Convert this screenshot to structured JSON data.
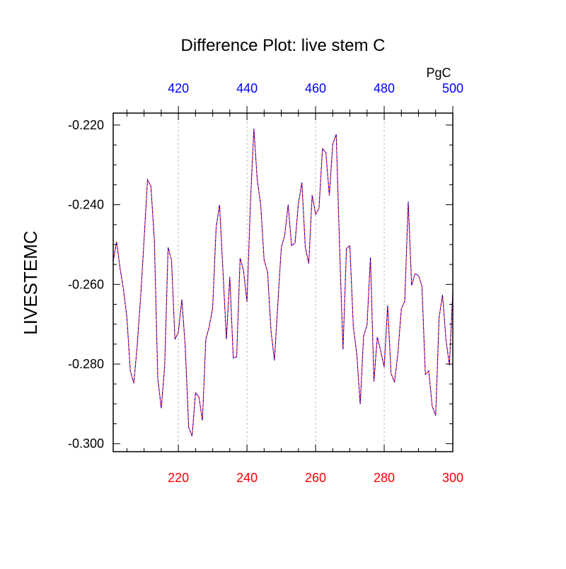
{
  "chart_data": {
    "type": "line",
    "title": "Difference Plot: live stem C",
    "ylabel": "LIVESTEMC",
    "units_label": "PgC",
    "xlim": [
      201,
      300
    ],
    "ylim": [
      -0.302,
      -0.217
    ],
    "bottom_axis": {
      "color": "#ff0000",
      "ticks": [
        220,
        240,
        260,
        280,
        300
      ]
    },
    "top_axis": {
      "color": "#0000ff",
      "offset": 200,
      "ticks": [
        420,
        440,
        460,
        480,
        500
      ]
    },
    "y_ticks": [
      -0.22,
      -0.24,
      -0.26,
      -0.28,
      -0.3
    ],
    "y_tick_labels": [
      "-0.220",
      "-0.240",
      "-0.260",
      "-0.280",
      "-0.300"
    ],
    "grid": "vertical dashed at major x ticks",
    "x": [
      201,
      202,
      203,
      204,
      205,
      206,
      207,
      208,
      209,
      210,
      211,
      212,
      213,
      214,
      215,
      216,
      217,
      218,
      219,
      220,
      221,
      222,
      223,
      224,
      225,
      226,
      227,
      228,
      229,
      230,
      231,
      232,
      233,
      234,
      235,
      236,
      237,
      238,
      239,
      240,
      241,
      242,
      243,
      244,
      245,
      246,
      247,
      248,
      249,
      250,
      251,
      252,
      253,
      254,
      255,
      256,
      257,
      258,
      259,
      260,
      261,
      262,
      263,
      264,
      265,
      266,
      267,
      268,
      269,
      270,
      271,
      272,
      273,
      274,
      275,
      276,
      277,
      278,
      279,
      280,
      281,
      282,
      283,
      284,
      285,
      286,
      287,
      288,
      289,
      290,
      291,
      292,
      293,
      294,
      295,
      296,
      297,
      298,
      299,
      300
    ],
    "series": [
      {
        "name": "series-red",
        "color": "#ff0000",
        "style": "solid",
        "values": [
          -0.2542,
          -0.2493,
          -0.256,
          -0.2613,
          -0.2684,
          -0.2817,
          -0.2848,
          -0.2755,
          -0.2631,
          -0.2489,
          -0.2337,
          -0.2354,
          -0.2489,
          -0.2835,
          -0.2911,
          -0.2808,
          -0.2507,
          -0.2539,
          -0.2738,
          -0.272,
          -0.2638,
          -0.2755,
          -0.2959,
          -0.2981,
          -0.2872,
          -0.2883,
          -0.2942,
          -0.2738,
          -0.2706,
          -0.2658,
          -0.2457,
          -0.24,
          -0.2569,
          -0.2738,
          -0.2581,
          -0.2785,
          -0.2782,
          -0.2534,
          -0.2565,
          -0.2644,
          -0.24,
          -0.2209,
          -0.2338,
          -0.24,
          -0.2539,
          -0.2569,
          -0.2716,
          -0.2791,
          -0.2649,
          -0.2507,
          -0.2477,
          -0.24,
          -0.2503,
          -0.2496,
          -0.2397,
          -0.2344,
          -0.2507,
          -0.2548,
          -0.2376,
          -0.2424,
          -0.2409,
          -0.2259,
          -0.2269,
          -0.2377,
          -0.2248,
          -0.2223,
          -0.2507,
          -0.2764,
          -0.251,
          -0.2503,
          -0.2706,
          -0.2773,
          -0.2901,
          -0.273,
          -0.2702,
          -0.2532,
          -0.2844,
          -0.2732,
          -0.2768,
          -0.2808,
          -0.2652,
          -0.2823,
          -0.2846,
          -0.2773,
          -0.2661,
          -0.2642,
          -0.2392,
          -0.2603,
          -0.2573,
          -0.2578,
          -0.2604,
          -0.2826,
          -0.2817,
          -0.2906,
          -0.2929,
          -0.2684,
          -0.2626,
          -0.2738,
          -0.2803,
          -0.2617
        ]
      },
      {
        "name": "series-blue",
        "color": "#0000ff",
        "style": "dashed",
        "values": [
          -0.2542,
          -0.2493,
          -0.256,
          -0.2613,
          -0.2684,
          -0.2817,
          -0.2848,
          -0.2755,
          -0.2631,
          -0.2489,
          -0.2337,
          -0.2354,
          -0.2489,
          -0.2835,
          -0.2911,
          -0.2808,
          -0.2507,
          -0.2539,
          -0.2738,
          -0.272,
          -0.2638,
          -0.2755,
          -0.2959,
          -0.2981,
          -0.2872,
          -0.2883,
          -0.2942,
          -0.2738,
          -0.2706,
          -0.2658,
          -0.2457,
          -0.24,
          -0.2569,
          -0.2738,
          -0.2581,
          -0.2785,
          -0.2782,
          -0.2534,
          -0.2565,
          -0.2644,
          -0.24,
          -0.2209,
          -0.2338,
          -0.24,
          -0.2539,
          -0.2569,
          -0.2716,
          -0.2791,
          -0.2649,
          -0.2507,
          -0.2477,
          -0.24,
          -0.2503,
          -0.2496,
          -0.2397,
          -0.2344,
          -0.2507,
          -0.2548,
          -0.2376,
          -0.2424,
          -0.2409,
          -0.2259,
          -0.2269,
          -0.2377,
          -0.2248,
          -0.2223,
          -0.2507,
          -0.2764,
          -0.251,
          -0.2503,
          -0.2706,
          -0.2773,
          -0.2901,
          -0.273,
          -0.2702,
          -0.2532,
          -0.2844,
          -0.2732,
          -0.2768,
          -0.2808,
          -0.2652,
          -0.2823,
          -0.2846,
          -0.2773,
          -0.2661,
          -0.2642,
          -0.2392,
          -0.2603,
          -0.2573,
          -0.2578,
          -0.2604,
          -0.2826,
          -0.2817,
          -0.2906,
          -0.2929,
          -0.2684,
          -0.2626,
          -0.2738,
          -0.2803,
          -0.2617
        ]
      }
    ]
  }
}
